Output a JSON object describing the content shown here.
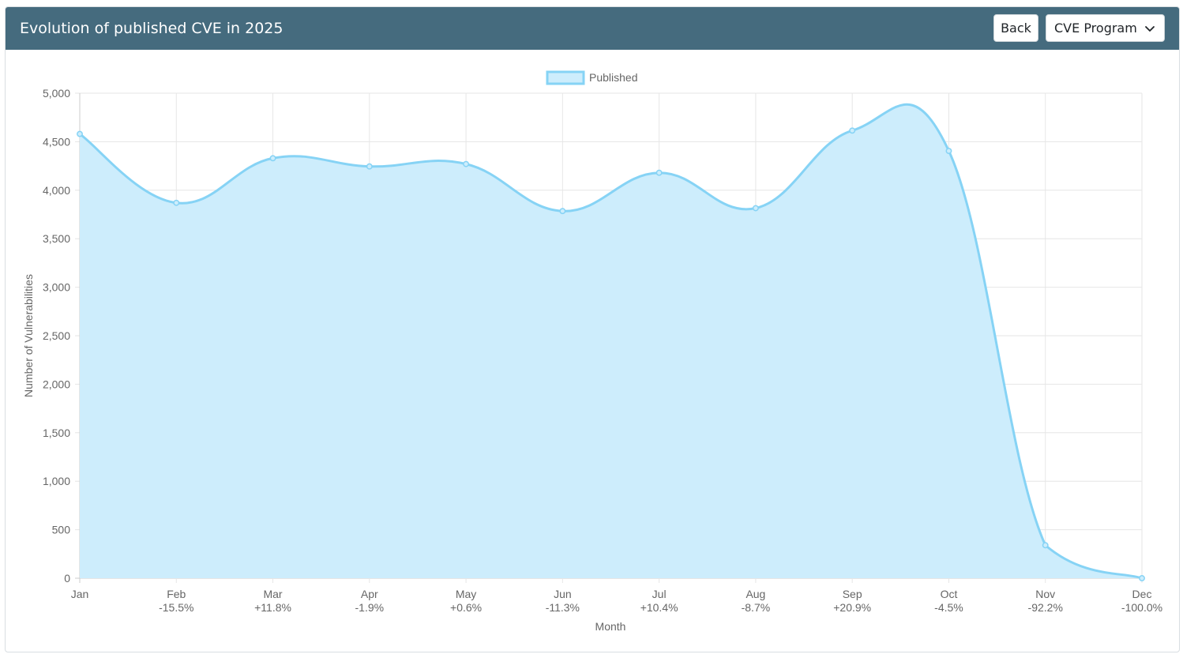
{
  "header": {
    "title": "Evolution of published CVE in 2025",
    "back_label": "Back",
    "program_select": "CVE Program",
    "program_icon": "chevron-down-icon",
    "background_color": "#456b7e"
  },
  "chart_data": {
    "type": "area",
    "categories": [
      "Jan",
      "Feb",
      "Mar",
      "Apr",
      "May",
      "Jun",
      "Jul",
      "Aug",
      "Sep",
      "Oct",
      "Nov",
      "Dec"
    ],
    "change_labels": [
      "",
      "-15.5%",
      "+11.8%",
      "-1.9%",
      "+0.6%",
      "-11.3%",
      "+10.4%",
      "-8.7%",
      "+20.9%",
      "-4.5%",
      "-92.2%",
      "-100.0%"
    ],
    "series": [
      {
        "name": "Published",
        "values": [
          4580,
          3870,
          4330,
          4245,
          4270,
          3785,
          4180,
          3815,
          4615,
          4405,
          340,
          0
        ],
        "line_color": "#86d3f5",
        "fill_color": "#cdedfc"
      }
    ],
    "xlabel": "Month",
    "ylabel": "Number of Vulnerabilities",
    "ylim": [
      0,
      5000
    ],
    "yticks": [
      "0",
      "500",
      "1,000",
      "1,500",
      "2,000",
      "2,500",
      "3,000",
      "3,500",
      "4,000",
      "4,500",
      "5,000"
    ],
    "grid": true,
    "legend_position": "top-center"
  }
}
